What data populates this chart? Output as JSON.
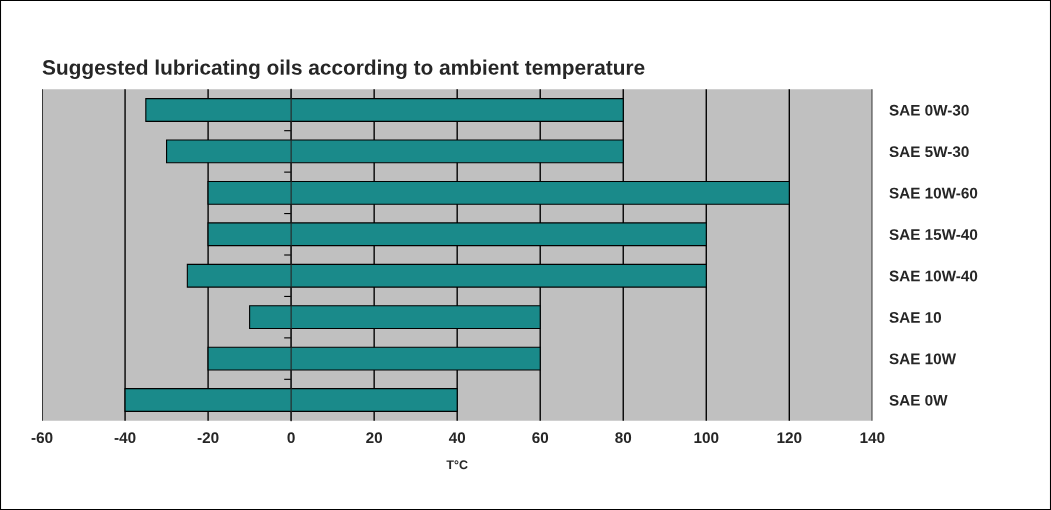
{
  "chart_data": {
    "type": "bar",
    "orientation": "horizontal",
    "title": "Suggested lubricating oils according to ambient temperature",
    "xlabel": "T°C",
    "categories": [
      "SAE 0W-30",
      "SAE 5W-30",
      "SAE 10W-60",
      "SAE 15W-40",
      "SAE 10W-40",
      "SAE 10",
      "SAE 10W",
      "SAE 0W"
    ],
    "base": [
      -35,
      -30,
      -20,
      -20,
      -25,
      -10,
      -20,
      -40
    ],
    "values": [
      115,
      110,
      140,
      120,
      125,
      70,
      80,
      80
    ],
    "color": "#1a8a8a",
    "xlim": [
      -60,
      140
    ],
    "xticks": [
      -60,
      -40,
      -20,
      0,
      20,
      40,
      60,
      80,
      100,
      120,
      140
    ],
    "grid": "x"
  }
}
